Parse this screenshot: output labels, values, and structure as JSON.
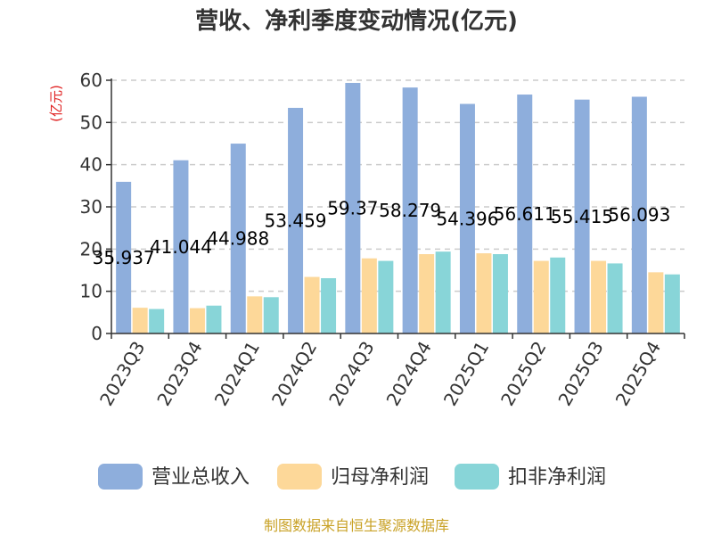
{
  "chart_data": {
    "type": "bar",
    "title": "营收、净利季度变动情况(亿元)",
    "ylabel": "(亿元)",
    "xlabel": "",
    "ylim": [
      0,
      60
    ],
    "yticks": [
      0,
      10,
      20,
      30,
      40,
      50,
      60
    ],
    "grid": true,
    "legend_position": "bottom",
    "categories": [
      "2023Q3",
      "2023Q4",
      "2024Q1",
      "2024Q2",
      "2024Q3",
      "2024Q4",
      "2025Q1",
      "2025Q2",
      "2025Q3",
      "2025Q4"
    ],
    "series": [
      {
        "name": "营业总收入",
        "color": "#8eaedc",
        "values": [
          35.937,
          41.044,
          44.988,
          53.459,
          59.37,
          58.279,
          54.396,
          56.611,
          55.415,
          56.093
        ],
        "labels": [
          "35.937",
          "41.044",
          "44.988",
          "53.459",
          "59.37",
          "58.279",
          "54.396",
          "56.611",
          "55.415",
          "56.093"
        ]
      },
      {
        "name": "归母净利润",
        "color": "#fdd899",
        "values": [
          6.1,
          6.0,
          8.8,
          13.4,
          17.8,
          18.8,
          19.0,
          17.2,
          17.2,
          14.5
        ]
      },
      {
        "name": "扣非净利润",
        "color": "#88d5d8",
        "values": [
          5.8,
          6.6,
          8.6,
          13.1,
          17.2,
          19.4,
          18.8,
          18.0,
          16.6,
          14.0
        ]
      }
    ],
    "source": "制图数据来自恒生聚源数据库",
    "colors": {
      "axis": "#333333",
      "grid": "#cccccc",
      "ylabel": "#e02020",
      "source": "#c9a227"
    }
  }
}
